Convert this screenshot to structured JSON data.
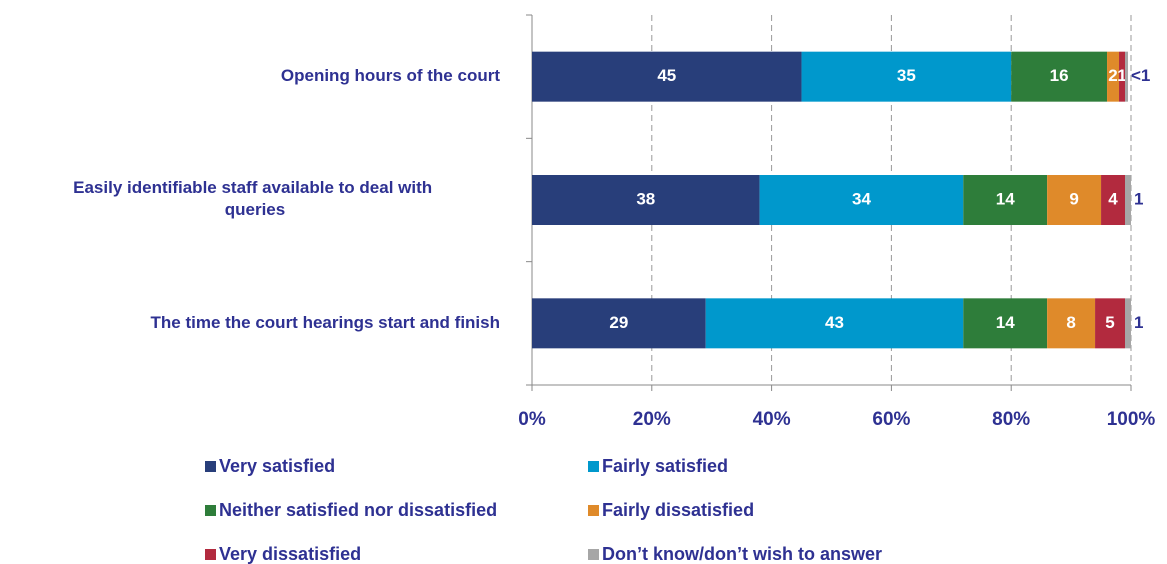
{
  "chart_data": {
    "type": "stacked-barh",
    "categories": [
      "Opening hours of the court",
      "Easily identifiable  staff available to deal with queries",
      "The time the court hearings start and finish"
    ],
    "series": [
      {
        "name": "Very satisfied",
        "color": "#283e7a",
        "values": [
          45,
          38,
          29
        ]
      },
      {
        "name": "Fairly satisfied",
        "color": "#0098cc",
        "values": [
          35,
          34,
          43
        ]
      },
      {
        "name": "Neither satisfied nor dissatisfied",
        "color": "#2e7d3a",
        "values": [
          16,
          14,
          14
        ]
      },
      {
        "name": "Fairly dissatisfied",
        "color": "#df8a2a",
        "values": [
          2,
          9,
          8
        ]
      },
      {
        "name": "Very dissatisfied",
        "color": "#b22a3e",
        "values": [
          1,
          4,
          5
        ]
      },
      {
        "name": "Don’t know/don’t  wish to answer",
        "color": "#a6a6a6",
        "values": [
          0.5,
          1,
          1
        ],
        "value_labels": [
          "<1",
          "1",
          "1"
        ]
      }
    ],
    "xlim": [
      0,
      100
    ],
    "xticks": [
      {
        "value": 0,
        "label": "0%"
      },
      {
        "value": 20,
        "label": "20%"
      },
      {
        "value": 40,
        "label": "40%"
      },
      {
        "value": 60,
        "label": "60%"
      },
      {
        "value": 80,
        "label": "80%"
      },
      {
        "value": 100,
        "label": "100%"
      }
    ],
    "grid": true
  }
}
